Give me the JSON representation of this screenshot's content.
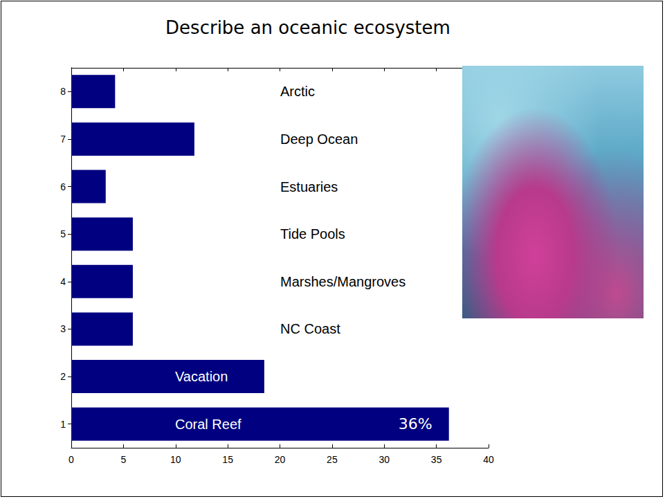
{
  "chart_data": {
    "type": "bar",
    "title": "Describe an oceanic ecosystem",
    "orientation": "horizontal",
    "categories": [
      "1",
      "2",
      "3",
      "4",
      "5",
      "6",
      "7",
      "8"
    ],
    "values": [
      36.2,
      18.5,
      5.9,
      5.9,
      5.9,
      3.3,
      11.8,
      4.2
    ],
    "value_labels": [
      "36%",
      null,
      null,
      null,
      null,
      null,
      null,
      null
    ],
    "annotations": [
      "Coral Reef",
      "Vacation",
      "NC Coast",
      "Marshes/Mangroves",
      "Tide Pools",
      "Estuaries",
      "Deep Ocean",
      "Arctic"
    ],
    "color": "#000080",
    "xlim": [
      0,
      40
    ],
    "xticks": [
      0,
      5,
      10,
      15,
      20,
      25,
      30,
      35,
      40
    ],
    "grid": false
  }
}
